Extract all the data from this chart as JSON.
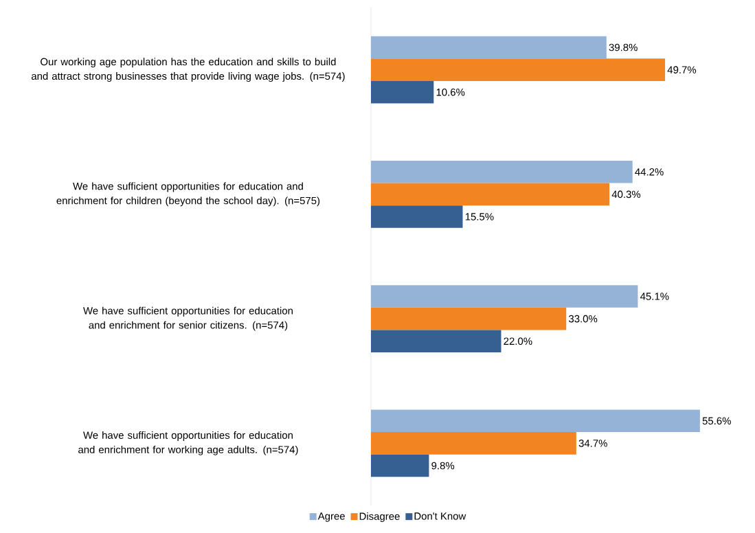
{
  "chart_data": {
    "type": "bar",
    "orientation": "horizontal",
    "legend": "bottom",
    "categories": [
      "Our working age population has the education and skills to build and attract strong businesses that provide living wage jobs. (n=574)",
      "We have sufficient opportunities for education and enrichment for children (beyond the school day). (n=575)",
      "We have sufficient opportunities for education and enrichment for senior citizens. (n=574)",
      "We have sufficient opportunities for education and enrichment for working age adults. (n=574)"
    ],
    "series": [
      {
        "name": "Agree",
        "color": "#95b3d7",
        "values": [
          39.8,
          44.2,
          45.1,
          55.6
        ],
        "value_labels": [
          "39.8%",
          "44.2%",
          "45.1%",
          "55.6%"
        ]
      },
      {
        "name": "Disagree",
        "color": "#f28522",
        "values": [
          49.7,
          40.3,
          33.0,
          34.7
        ],
        "value_labels": [
          "49.7%",
          "40.3%",
          "33.0%",
          "34.7%"
        ]
      },
      {
        "name": "Don't Know",
        "color": "#366092",
        "values": [
          10.6,
          15.5,
          22.0,
          9.8
        ],
        "value_labels": [
          "10.6%",
          "15.5%",
          "22.0%",
          "9.8%"
        ]
      }
    ]
  }
}
